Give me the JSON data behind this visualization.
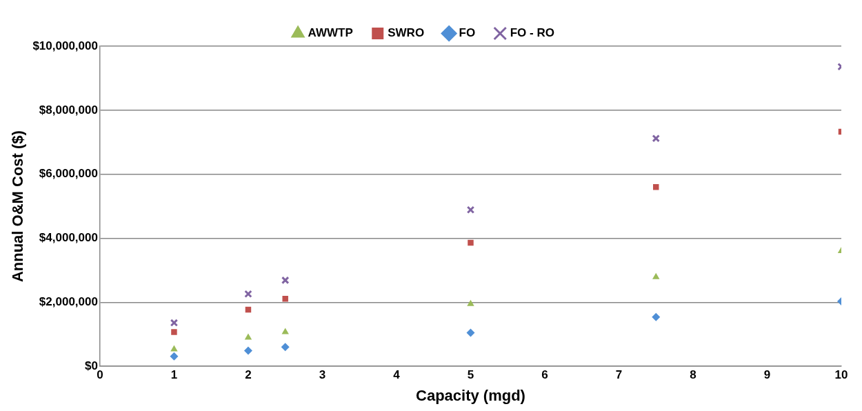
{
  "chart_data": {
    "type": "scatter",
    "xlabel": "Capacity (mgd)",
    "ylabel": "Annual O&M Cost ($)",
    "xlim": [
      0,
      10
    ],
    "xticks": [
      0,
      1,
      2,
      3,
      4,
      5,
      6,
      7,
      8,
      9,
      10
    ],
    "ylim": [
      0,
      10000000
    ],
    "yticks": [
      {
        "value": 0,
        "label": "$0"
      },
      {
        "value": 2000000,
        "label": "$2,000,000"
      },
      {
        "value": 4000000,
        "label": "$4,000,000"
      },
      {
        "value": 6000000,
        "label": "$6,000,000"
      },
      {
        "value": 8000000,
        "label": "$8,000,000"
      },
      {
        "value": 10000000,
        "label": "$10,000,000"
      }
    ],
    "grid": "y",
    "legend": "top",
    "x": [
      1,
      2,
      2.5,
      5,
      7.5,
      10
    ],
    "series": [
      {
        "name": "AWWTP",
        "color": "#9bbb59",
        "marker": "triangle",
        "values": [
          530000,
          900000,
          1070000,
          1950000,
          2790000,
          3600000
        ]
      },
      {
        "name": "SWRO",
        "color": "#c0504d",
        "marker": "square",
        "values": [
          1070000,
          1770000,
          2110000,
          3860000,
          5600000,
          7330000
        ]
      },
      {
        "name": "FO",
        "color": "#4f8fd6",
        "marker": "diamond",
        "values": [
          310000,
          490000,
          600000,
          1050000,
          1540000,
          2030000
        ]
      },
      {
        "name": "FO - RO",
        "color": "#8064a2",
        "marker": "cross",
        "values": [
          1360000,
          2260000,
          2690000,
          4890000,
          7120000,
          9360000
        ]
      }
    ]
  }
}
